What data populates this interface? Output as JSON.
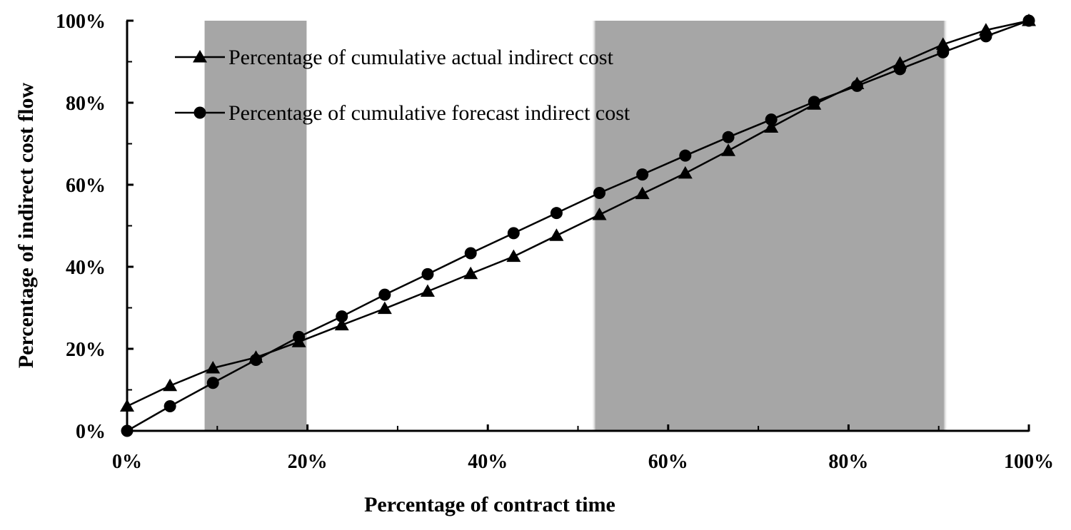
{
  "chart_data": {
    "type": "line",
    "title": "",
    "xlabel": "Percentage of contract time",
    "ylabel": "Percentage of indirect cost flow",
    "xlim": [
      0,
      100
    ],
    "ylim": [
      0,
      100
    ],
    "x_ticks": [
      0,
      20,
      40,
      60,
      80,
      100
    ],
    "x_tick_labels": [
      "0%",
      "20%",
      "40%",
      "60%",
      "80%",
      "100%"
    ],
    "y_ticks": [
      0,
      20,
      40,
      60,
      80,
      100
    ],
    "y_tick_labels": [
      "0%",
      "20%",
      "40%",
      "60%",
      "80%",
      "100%"
    ],
    "grid": false,
    "legend_position": "top-left",
    "shaded_ranges": [
      {
        "from": 8.5,
        "to": 20
      },
      {
        "from": 51.5,
        "to": 91
      }
    ],
    "shade_color": "#a6a6a6",
    "series": [
      {
        "name": "Percentage of cumulative actual indirect cost",
        "marker": "triangle",
        "x": [
          0,
          4.76,
          9.52,
          14.29,
          19.05,
          23.81,
          28.57,
          33.33,
          38.1,
          42.86,
          47.62,
          52.38,
          57.14,
          61.9,
          66.67,
          71.43,
          76.19,
          80.95,
          85.71,
          90.48,
          95.24,
          100
        ],
        "values": [
          6,
          11,
          15.3,
          17.9,
          21.7,
          25.8,
          29.8,
          34,
          38.3,
          42.5,
          47.6,
          52.7,
          57.8,
          62.8,
          68.3,
          74,
          79.6,
          84.6,
          89.6,
          94.2,
          97.7,
          100
        ]
      },
      {
        "name": "Percentage of cumulative forecast indirect cost",
        "marker": "circle",
        "x": [
          0,
          4.76,
          9.52,
          14.29,
          19.05,
          23.81,
          28.57,
          33.33,
          38.1,
          42.86,
          47.62,
          52.38,
          57.14,
          61.9,
          66.67,
          71.43,
          76.19,
          80.95,
          85.71,
          90.48,
          95.24,
          100
        ],
        "values": [
          0,
          6,
          11.7,
          17.3,
          22.9,
          27.9,
          33.2,
          38.2,
          43.3,
          48.2,
          53.1,
          58,
          62.5,
          67.1,
          71.6,
          75.9,
          80.2,
          84.1,
          88.2,
          92.3,
          96.2,
          100
        ]
      }
    ]
  }
}
